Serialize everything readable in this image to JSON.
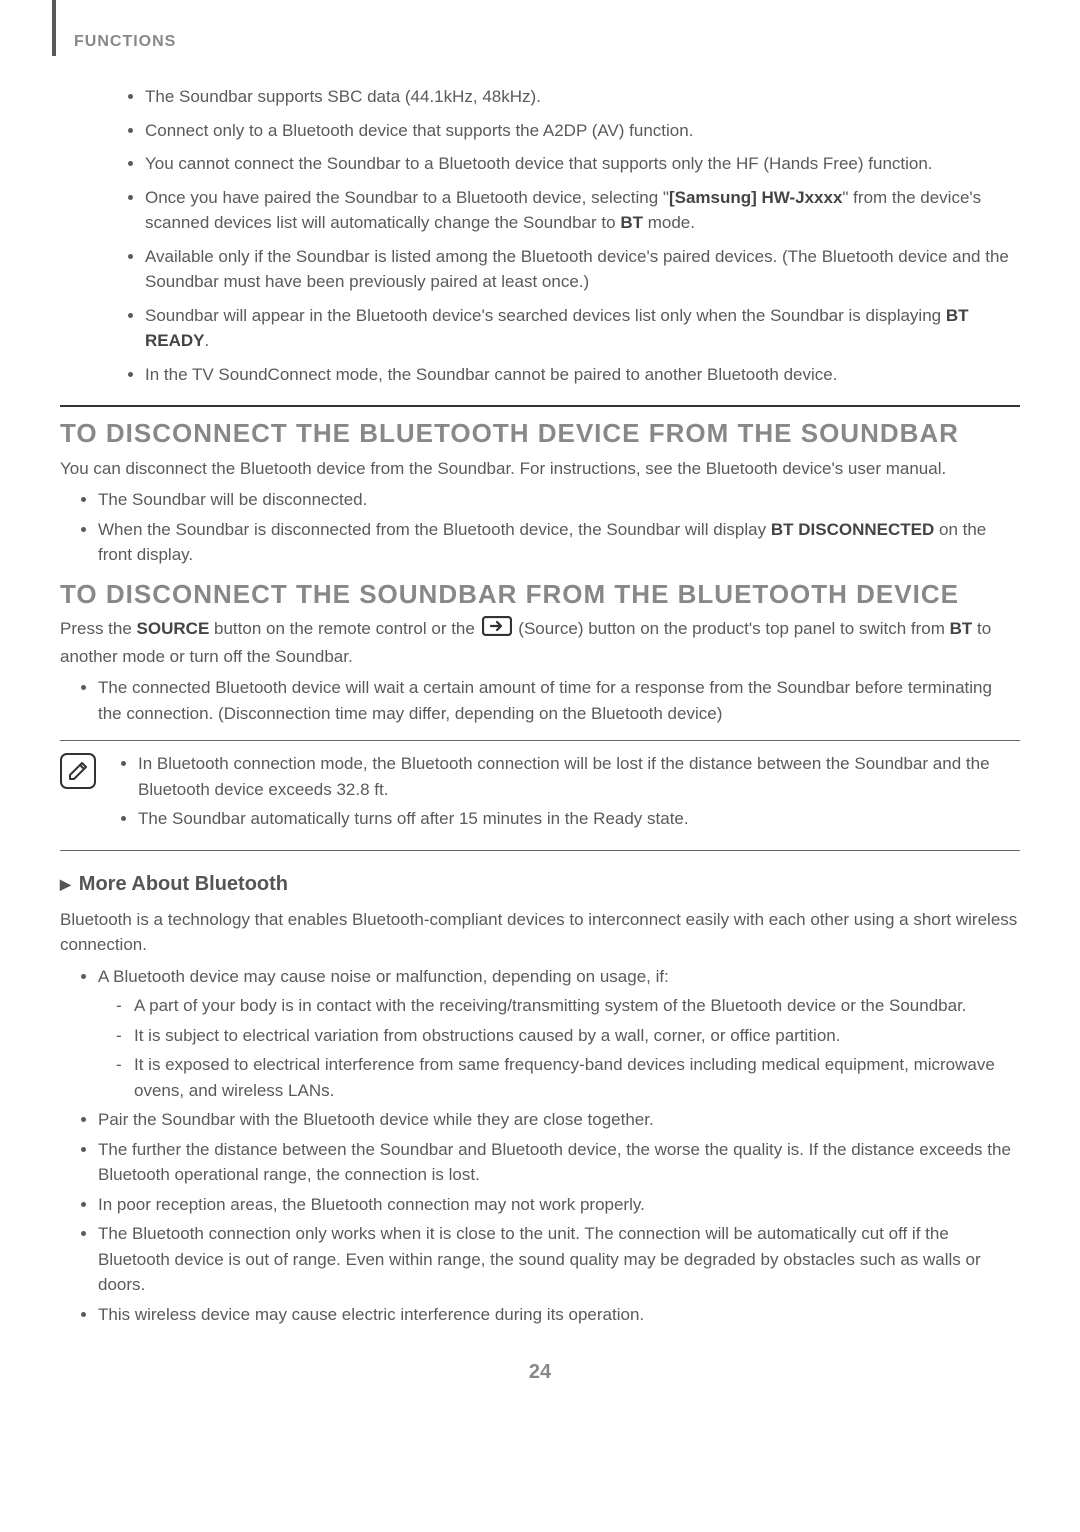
{
  "header": {
    "tab_label": "FUNCTIONS"
  },
  "intro": {
    "items": [
      "The Soundbar supports SBC data (44.1kHz, 48kHz).",
      "Connect only to a Bluetooth device that supports the A2DP (AV) function.",
      "You cannot connect the Soundbar to a Bluetooth device that supports only the HF (Hands Free) function.",
      "Once you have paired the Soundbar to a Bluetooth device, selecting \"<b>[Samsung] HW-Jxxxx</b>\" from the device's scanned devices list will automatically change the Soundbar to <b>BT</b> mode.",
      "Available only if the Soundbar is listed among the Bluetooth device's paired devices. (The Bluetooth device and the Soundbar must have been previously paired at least once.)",
      "Soundbar will appear in the Bluetooth device's searched devices list only when the Soundbar is displaying <b>BT READY</b>.",
      "In the TV SoundConnect mode, the Soundbar cannot be paired to another Bluetooth device."
    ]
  },
  "section1": {
    "heading": "TO DISCONNECT THE BLUETOOTH DEVICE FROM THE SOUNDBAR",
    "intro": "You can disconnect the Bluetooth device from the Soundbar. For instructions, see the Bluetooth device's user manual.",
    "bullets": [
      "The Soundbar will be disconnected.",
      "When the Soundbar is disconnected from the Bluetooth device, the Soundbar will display <b>BT DISCONNECTED</b> on the front display."
    ]
  },
  "section2": {
    "heading": "TO DISCONNECT THE SOUNDBAR FROM THE BLUETOOTH DEVICE",
    "intro_before": "Press the <b>SOURCE</b> button on the remote control or the ",
    "intro_after": " (Source) button on the product's top panel to switch from <b>BT</b> to another mode or turn off the Soundbar.",
    "bullets": [
      "The connected Bluetooth device will wait a certain amount of time for a response from the Soundbar before terminating the connection. (Disconnection time may differ, depending on the Bluetooth device)"
    ]
  },
  "note": {
    "bullets": [
      "In Bluetooth connection mode, the Bluetooth connection will be lost if the distance between the Soundbar and the Bluetooth device exceeds 32.8 ft.",
      "The Soundbar automatically turns off after 15 minutes in the Ready state."
    ]
  },
  "more_about": {
    "heading": "More About Bluetooth",
    "intro": "Bluetooth is a technology that enables Bluetooth-compliant devices to interconnect easily with each other using a short wireless connection.",
    "b1": "A Bluetooth device may cause noise or malfunction, depending on usage, if:",
    "b1_sub": [
      "A part of your body is in contact with the receiving/transmitting system of the Bluetooth device or the Soundbar.",
      "It is subject to electrical variation from obstructions caused by a wall, corner, or office partition.",
      "It is exposed to electrical interference from same frequency-band devices including medical equipment, microwave ovens, and wireless LANs."
    ],
    "b2": "Pair the Soundbar with the Bluetooth device while they are close together.",
    "b3": "The further the distance between the Soundbar and Bluetooth device, the worse the quality is. If the distance exceeds the Bluetooth operational range, the connection is lost.",
    "b4": "In poor reception areas, the Bluetooth connection may not work properly.",
    "b5": "The Bluetooth connection only works when it is close to the unit. The connection will be automatically cut off if the Bluetooth device is out of range. Even within range, the sound quality may be degraded by obstacles such as walls or doors.",
    "b6": "This wireless device may cause electric interference during its operation."
  },
  "page_number": "24",
  "colors": {
    "text": "#5a5a5a",
    "heading": "#888888",
    "bold": "#444444",
    "rule": "#333333",
    "background": "#ffffff"
  }
}
